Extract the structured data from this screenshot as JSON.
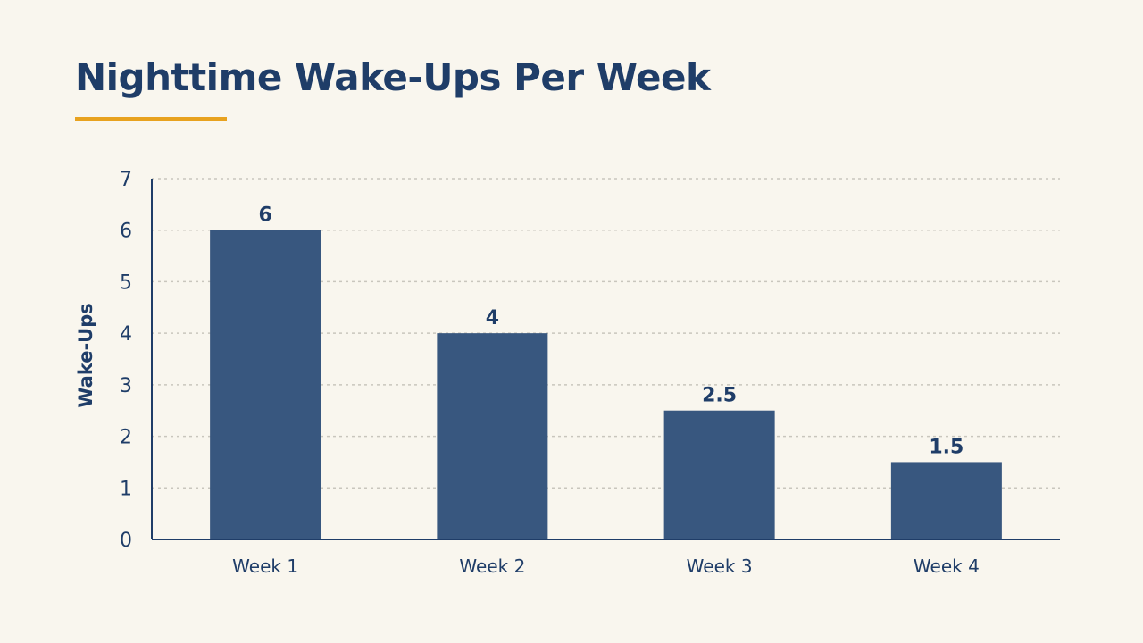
{
  "header": {
    "title": "Nighttime Wake-Ups Per Week"
  },
  "colors": {
    "background": "#f9f6ee",
    "bar": "#38577f",
    "text": "#1f3d68",
    "accent": "#e8a21f",
    "grid": "#c9c6bd"
  },
  "chart_data": {
    "type": "bar",
    "title": "Nighttime Wake-Ups Per Week",
    "xlabel": "",
    "ylabel": "Wake-Ups",
    "categories": [
      "Week 1",
      "Week 2",
      "Week 3",
      "Week 4"
    ],
    "values": [
      6,
      4,
      2.5,
      1.5
    ],
    "data_labels": [
      "6",
      "4",
      "2.5",
      "1.5"
    ],
    "ylim": [
      0,
      7
    ],
    "yticks": [
      0,
      1,
      2,
      3,
      4,
      5,
      6,
      7
    ],
    "grid": true,
    "legend": "none"
  }
}
